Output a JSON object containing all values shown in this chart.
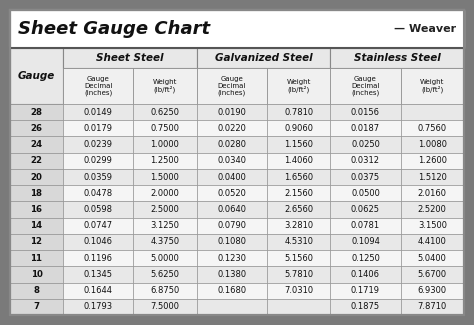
{
  "title": "Sheet Gauge Chart",
  "bg_outer": "#7a7a7a",
  "bg_inner": "#f2f2f2",
  "title_bg": "#ffffff",
  "header_bg": "#ffffff",
  "subheader_bg": "#ffffff",
  "row_bg_light": "#f0f0f0",
  "row_bg_dark": "#e0e0e0",
  "gauge_col_bg": "#e8e8e8",
  "border_color": "#555555",
  "thick_border": "#333333",
  "gauges": [
    28,
    26,
    24,
    22,
    20,
    18,
    16,
    14,
    12,
    11,
    10,
    8,
    7
  ],
  "sheet_steel_dec": [
    "0.0149",
    "0.0179",
    "0.0239",
    "0.0299",
    "0.0359",
    "0.0478",
    "0.0598",
    "0.0747",
    "0.1046",
    "0.1196",
    "0.1345",
    "0.1644",
    "0.1793"
  ],
  "sheet_steel_wt": [
    "0.6250",
    "0.7500",
    "1.0000",
    "1.2500",
    "1.5000",
    "2.0000",
    "2.5000",
    "3.1250",
    "4.3750",
    "5.0000",
    "5.6250",
    "6.8750",
    "7.5000"
  ],
  "galv_dec": [
    "0.0190",
    "0.0220",
    "0.0280",
    "0.0340",
    "0.0400",
    "0.0520",
    "0.0640",
    "0.0790",
    "0.1080",
    "0.1230",
    "0.1380",
    "0.1680",
    ""
  ],
  "galv_wt": [
    "0.7810",
    "0.9060",
    "1.1560",
    "1.4060",
    "1.6560",
    "2.1560",
    "2.6560",
    "3.2810",
    "4.5310",
    "5.1560",
    "5.7810",
    "7.0310",
    ""
  ],
  "stain_dec": [
    "0.0156",
    "0.0187",
    "0.0250",
    "0.0312",
    "0.0375",
    "0.0500",
    "0.0625",
    "0.0781",
    "0.1094",
    "0.1250",
    "0.1406",
    "0.1719",
    "0.1875"
  ],
  "stain_wt": [
    "",
    "0.7560",
    "1.0080",
    "1.2600",
    "1.5120",
    "2.0160",
    "2.5200",
    "3.1500",
    "4.4100",
    "5.0400",
    "5.6700",
    "6.9300",
    "7.8710"
  ]
}
